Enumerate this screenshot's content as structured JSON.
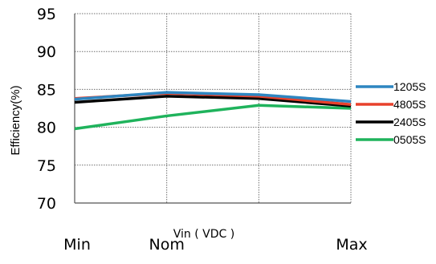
{
  "chart_data": {
    "type": "line",
    "title": "",
    "xlabel": "Vin ( VDC )",
    "ylabel": "Efficiency(%)",
    "categories": [
      "Min",
      "Nom",
      "",
      "Max"
    ],
    "ylim": [
      70,
      95
    ],
    "yticks": [
      70,
      75,
      80,
      85,
      90,
      95
    ],
    "grid": true,
    "legend_position": "right",
    "series": [
      {
        "name": "1205S",
        "color": "#2e86c1",
        "values": [
          83.7,
          84.6,
          84.3,
          83.4
        ]
      },
      {
        "name": "4805S",
        "color": "#e8412c",
        "values": [
          83.8,
          84.5,
          84.1,
          83.0
        ]
      },
      {
        "name": "2405S",
        "color": "#000000",
        "values": [
          83.3,
          84.1,
          83.8,
          82.8
        ]
      },
      {
        "name": "0505S",
        "color": "#1fb35c",
        "values": [
          79.8,
          81.5,
          82.9,
          82.5
        ]
      }
    ]
  }
}
